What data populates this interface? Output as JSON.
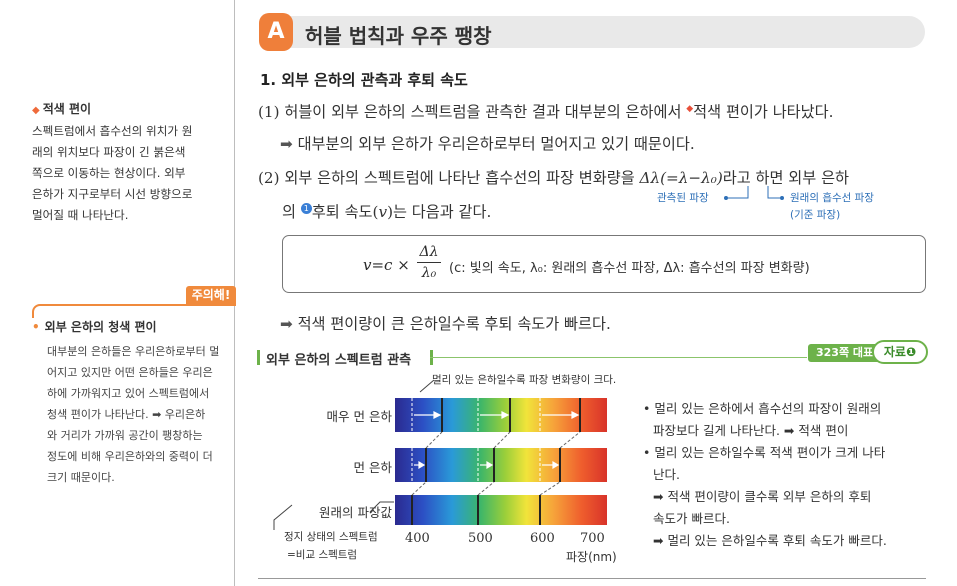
{
  "sidebar": {
    "note1": {
      "marker": "◆",
      "title": "적색 편이",
      "lines": [
        "스펙트럼에서 흡수선의 위치가 원",
        "래의 위치보다 파장이 긴 붉은색",
        "쪽으로 이동하는 현상이다. 외부",
        "은하가 지구로부터 시선 방향으로",
        "멀어질 때 나타난다."
      ]
    },
    "note2": {
      "tag": "주의해!",
      "marker": "•",
      "title": "외부 은하의 청색 편이",
      "lines": [
        "대부분의 은하들은 우리은하로부터 멀",
        "어지고 있지만 어떤 은하들은 우리은",
        "하에 가까워지고 있어 스펙트럼에서",
        "청색 편이가 나타난다. ➡ 우리은하",
        "와 거리가 가까워 공간이 팽창하는",
        "정도에 비해 우리은하와의 중력이 더",
        "크기 때문이다."
      ]
    }
  },
  "header": {
    "badge": "A",
    "title": "허블 법칙과 우주 팽창"
  },
  "section": {
    "heading": "1. 외부 은하의 관측과 후퇴 속도"
  },
  "content": {
    "p1": "(1) 허블이 외부 은하의 스펙트럼을 관측한 결과 대부분의 은하에서",
    "p1_star": "◆",
    "p1_end": "적색 편이가 나타났다.",
    "p1_arrow": "➡",
    "p1_follow": "대부분의 외부 은하가 우리은하로부터 멀어지고 있기 때문이다.",
    "p2_a": "(2) 외부 은하의 스펙트럼에 나타난 흡수선의 파장 변화량을",
    "p2_formula": "Δλ(=λ−λ₀)",
    "p2_b": "라고 하면 외부 은하",
    "p2_c1": "의",
    "p2_note_num": "1",
    "p2_c2": "후퇴 속도(",
    "p2_c3": "v",
    "p2_c4": ")는 다음과 같다.",
    "annot_observed": "관측된 파장",
    "annot_original": "원래의 흡수선 파장",
    "annot_reference": "(기준 파장)",
    "formula_lhs": "v=c ×",
    "formula_num": "Δλ",
    "formula_den": "λ₀",
    "formula_desc": "(c: 빛의 속도, λ₀: 원래의 흡수선 파장, Δλ: 흡수선의 파장 변화량)",
    "conclusion_arrow": "➡",
    "conclusion": "적색 편이량이 큰 은하일수록 후퇴 속도가 빠르다."
  },
  "figure": {
    "title": "외부 은하의 스펙트럼 관측",
    "ref_tag": "323쪽 대표",
    "ref_oval": "자료❶",
    "top_note": "멀리 있는 은하일수록 파장 변화량이 크다.",
    "rows": [
      {
        "label": "매우 먼 은하"
      },
      {
        "label": "먼 은하"
      },
      {
        "label": "원래의 파장값"
      }
    ],
    "rest_note_1": "정지 상태의 스펙트럼",
    "rest_note_2": "=비교 스펙트럼",
    "axis": {
      "ticks": [
        "400",
        "500",
        "600",
        "700"
      ],
      "unit": "파장(nm)"
    },
    "bullets": [
      {
        "text": "• 멀리 있는 은하에서 흡수선의 파장이 원래의",
        "sub": false
      },
      {
        "text": "파장보다 길게 나타난다. ➡ 적색 편이",
        "sub": true
      },
      {
        "text": "• 멀리 있는 은하일수록 적색 편이가 크게 나타",
        "sub": false
      },
      {
        "text": "난다.",
        "sub": true
      },
      {
        "text": "➡ 적색 편이량이 클수록 외부 은하의 후퇴",
        "sub": true
      },
      {
        "text": "속도가 빠르다.",
        "sub": true
      },
      {
        "text": "➡ 멀리 있는 은하일수록 후퇴 속도가 빠르다.",
        "sub": true
      }
    ]
  },
  "colors": {
    "accent": "#ef7f3a",
    "green": "#6db24a",
    "blue_annot": "#2d6fb7",
    "red_star": "#e8503a"
  }
}
